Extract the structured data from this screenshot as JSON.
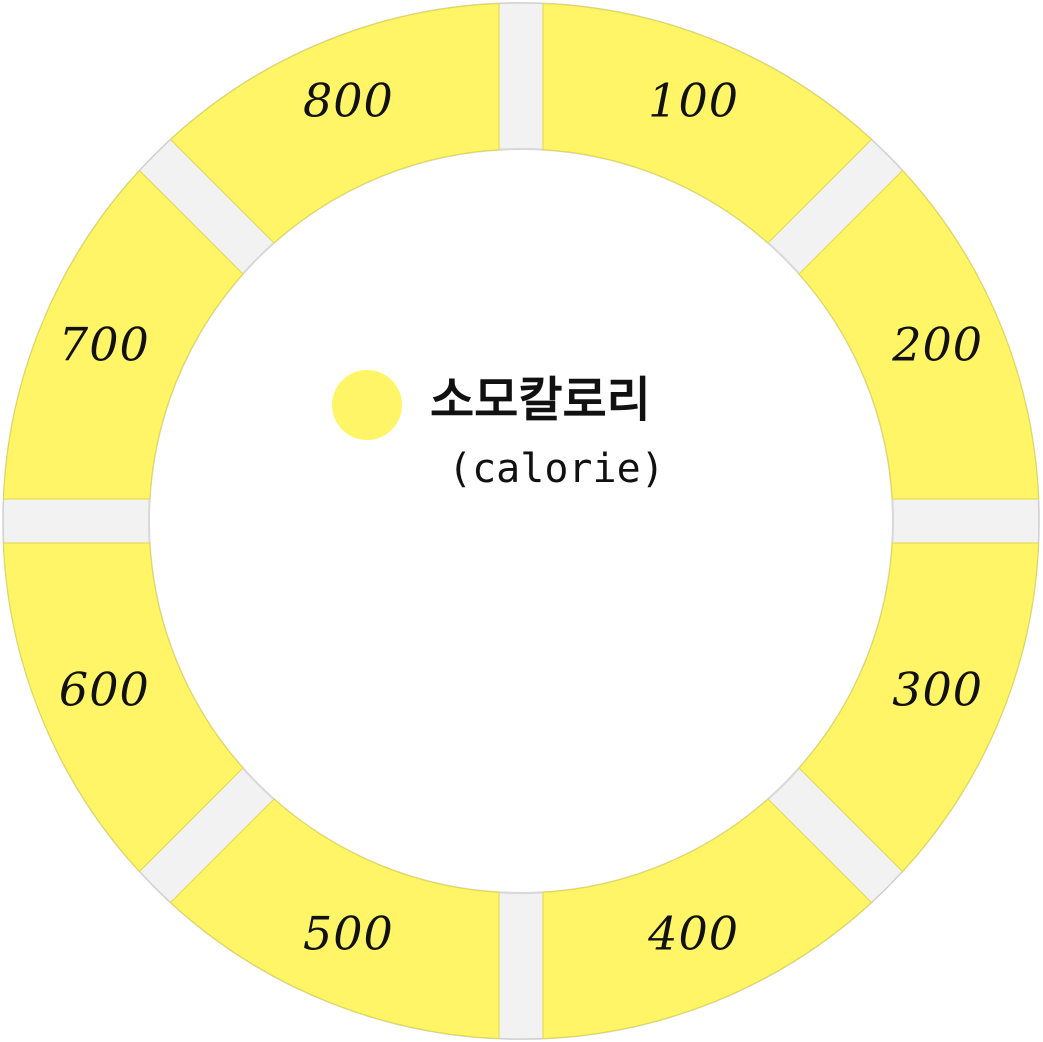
{
  "diagram": {
    "segments": [
      {
        "label": "100"
      },
      {
        "label": "200"
      },
      {
        "label": "300"
      },
      {
        "label": "400"
      },
      {
        "label": "500"
      },
      {
        "label": "600"
      },
      {
        "label": "700"
      },
      {
        "label": "800"
      }
    ],
    "segment_color": "#fff566",
    "background_color": "#ffffff",
    "gap_color": "#f2f2f2"
  },
  "legend": {
    "title": "소모칼로리",
    "subtitle": "(calorie)",
    "dot_color": "#fff566"
  }
}
